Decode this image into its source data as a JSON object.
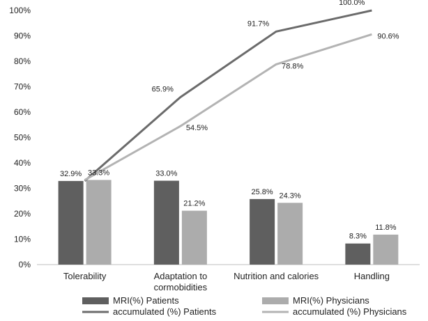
{
  "chart_data": {
    "type": "bar",
    "categories": [
      [
        "Tolerability"
      ],
      [
        "Adaptation to",
        "cormobidities"
      ],
      [
        "Nutrition and calories"
      ],
      [
        "Handling"
      ]
    ],
    "ylim": [
      0,
      100
    ],
    "yticks": [
      0,
      10,
      20,
      30,
      40,
      50,
      60,
      70,
      80,
      90,
      100
    ],
    "ytick_labels": [
      "0%",
      "10%",
      "20%",
      "30%",
      "40%",
      "50%",
      "60%",
      "70%",
      "80%",
      "90%",
      "100%"
    ],
    "grid": false,
    "legend_position": "bottom",
    "bar_series": [
      {
        "name": "MRI(%) Patients",
        "color": "#5f5f5f",
        "values": [
          32.9,
          33.0,
          25.8,
          8.3
        ],
        "labels": [
          "32.9%",
          "33.0%",
          "25.8%",
          "8.3%"
        ]
      },
      {
        "name": "MRI(%) Physicians",
        "color": "#acacac",
        "values": [
          33.3,
          21.2,
          24.3,
          11.8
        ],
        "labels": [
          "33.3%",
          "21.2%",
          "24.3%",
          "11.8%"
        ]
      }
    ],
    "line_series": [
      {
        "name": "accumulated (%) Patients",
        "color": "#6b6b6b",
        "values": [
          32.9,
          65.9,
          91.7,
          100.0
        ],
        "labels": [
          "",
          "65.9%",
          "91.7%",
          "100.0%"
        ]
      },
      {
        "name": "accumulated (%) Physicians",
        "color": "#b3b3b3",
        "values": [
          33.3,
          54.5,
          78.8,
          90.6
        ],
        "labels": [
          "",
          "54.5%",
          "78.8%",
          "90.6%"
        ]
      }
    ]
  }
}
